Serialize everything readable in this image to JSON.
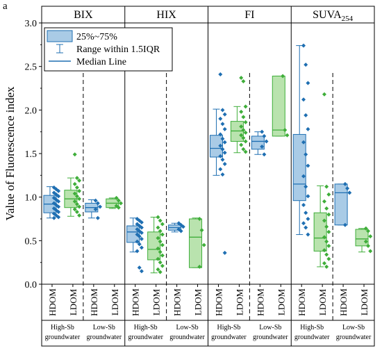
{
  "panel_label": "a",
  "chart_data": {
    "type": "box",
    "title": "",
    "ylabel": "Value of Fluorescence index",
    "ylim": [
      0,
      3.0
    ],
    "yticks": [
      0.0,
      0.5,
      1.0,
      1.5,
      2.0,
      2.5,
      3.0
    ],
    "ytick_labels": [
      "0.0",
      "0.5",
      "1.0",
      "1.5",
      "2.0",
      "2.5",
      "3.0"
    ],
    "grid": false,
    "legend": {
      "position": "top-left",
      "entries": [
        {
          "kind": "box",
          "label": "25%~75%"
        },
        {
          "kind": "whisker",
          "label": "Range within 1.5IQR"
        },
        {
          "kind": "median",
          "label": "Median Line"
        }
      ]
    },
    "groups": [
      {
        "label": "High-Sb",
        "label2": "groundwater"
      },
      {
        "label": "Low-Sb",
        "label2": "groundwater"
      }
    ],
    "series": [
      {
        "name": "HDOM",
        "color": "#1f6fb2",
        "fill": "#a9cbe6"
      },
      {
        "name": "LDOM",
        "color": "#3fae3a",
        "fill": "#b9e3ae"
      }
    ],
    "panels": [
      {
        "name_parts": [
          {
            "text": "BIX"
          }
        ],
        "boxes": [
          {
            "series": "HDOM",
            "group": "High-Sb",
            "q1": 0.82,
            "median": 0.92,
            "q3": 1.02,
            "whisker_low": 0.76,
            "whisker_high": 1.12,
            "points": [
              1.11,
              1.09,
              1.07,
              1.05,
              1.03,
              1.01,
              0.99,
              0.97,
              0.95,
              0.93,
              0.91,
              0.89,
              0.87,
              0.85,
              0.83,
              0.81,
              0.79,
              0.77,
              0.76
            ]
          },
          {
            "series": "LDOM",
            "group": "High-Sb",
            "q1": 0.88,
            "median": 0.98,
            "q3": 1.08,
            "whisker_low": 0.78,
            "whisker_high": 1.22,
            "points": [
              1.49,
              1.22,
              1.19,
              1.15,
              1.11,
              1.07,
              1.04,
              1.01,
              0.98,
              0.95,
              0.92,
              0.89,
              0.86,
              0.83,
              0.79
            ]
          },
          {
            "series": "HDOM",
            "group": "Low-Sb",
            "q1": 0.83,
            "median": 0.88,
            "q3": 0.93,
            "whisker_low": 0.76,
            "whisker_high": 0.97,
            "points": [
              0.96,
              0.93,
              0.89,
              0.86,
              0.76
            ]
          },
          {
            "series": "LDOM",
            "group": "Low-Sb",
            "q1": 0.88,
            "median": 0.93,
            "q3": 0.98,
            "whisker_low": 0.87,
            "whisker_high": 0.99,
            "points": [
              0.99,
              0.96,
              0.93,
              0.9,
              0.88
            ]
          }
        ]
      },
      {
        "name_parts": [
          {
            "text": "HIX"
          }
        ],
        "boxes": [
          {
            "series": "HDOM",
            "group": "High-Sb",
            "q1": 0.48,
            "median": 0.6,
            "q3": 0.67,
            "whisker_low": 0.37,
            "whisker_high": 0.76,
            "points": [
              0.75,
              0.73,
              0.71,
              0.69,
              0.67,
              0.65,
              0.63,
              0.61,
              0.59,
              0.57,
              0.55,
              0.52,
              0.49,
              0.46,
              0.42,
              0.38,
              0.19,
              0.15
            ]
          },
          {
            "series": "LDOM",
            "group": "High-Sb",
            "q1": 0.28,
            "median": 0.4,
            "q3": 0.6,
            "whisker_low": 0.13,
            "whisker_high": 0.77,
            "points": [
              0.77,
              0.73,
              0.69,
              0.65,
              0.61,
              0.57,
              0.53,
              0.49,
              0.45,
              0.41,
              0.37,
              0.33,
              0.29,
              0.25,
              0.21,
              0.17,
              0.14
            ]
          },
          {
            "series": "HDOM",
            "group": "Low-Sb",
            "q1": 0.62,
            "median": 0.65,
            "q3": 0.68,
            "whisker_low": 0.6,
            "whisker_high": 0.7,
            "points": [
              0.7,
              0.68,
              0.66,
              0.63,
              0.61
            ]
          },
          {
            "series": "LDOM",
            "group": "Low-Sb",
            "q1": 0.19,
            "median": 0.54,
            "q3": 0.75,
            "whisker_low": 0.19,
            "whisker_high": 0.76,
            "points": [
              0.75,
              0.62,
              0.45,
              0.2
            ]
          }
        ]
      },
      {
        "name_parts": [
          {
            "text": "FI"
          }
        ],
        "boxes": [
          {
            "series": "HDOM",
            "group": "High-Sb",
            "q1": 1.46,
            "median": 1.56,
            "q3": 1.71,
            "whisker_low": 1.25,
            "whisker_high": 2.01,
            "points": [
              2.41,
              2.0,
              1.95,
              1.9,
              1.84,
              1.78,
              1.72,
              1.67,
              1.63,
              1.59,
              1.55,
              1.51,
              1.47,
              1.43,
              1.38,
              1.32,
              1.26,
              0.36
            ]
          },
          {
            "series": "LDOM",
            "group": "High-Sb",
            "q1": 1.64,
            "median": 1.76,
            "q3": 1.87,
            "whisker_low": 1.51,
            "whisker_high": 2.04,
            "points": [
              2.37,
              2.33,
              2.04,
              1.98,
              1.92,
              1.86,
              1.81,
              1.77,
              1.74,
              1.71,
              1.68,
              1.64,
              1.6,
              1.55,
              1.52
            ]
          },
          {
            "series": "HDOM",
            "group": "Low-Sb",
            "q1": 1.55,
            "median": 1.64,
            "q3": 1.7,
            "whisker_low": 1.49,
            "whisker_high": 1.75,
            "points": [
              1.75,
              1.7,
              1.64,
              1.58,
              1.49
            ]
          },
          {
            "series": "LDOM",
            "group": "Low-Sb",
            "q1": 1.7,
            "median": 1.77,
            "q3": 2.39,
            "whisker_low": 1.7,
            "whisker_high": 2.39,
            "points": [
              2.39,
              1.77,
              1.71
            ]
          }
        ]
      },
      {
        "name_parts": [
          {
            "text": "SUVA"
          },
          {
            "text": "254",
            "sub": true
          }
        ],
        "boxes": [
          {
            "series": "HDOM",
            "group": "High-Sb",
            "q1": 0.96,
            "median": 1.15,
            "q3": 1.72,
            "whisker_low": 0.57,
            "whisker_high": 2.74,
            "points": [
              2.74,
              2.52,
              2.31,
              2.12,
              1.94,
              1.78,
              1.63,
              1.49,
              1.36,
              1.24,
              1.12,
              1.01,
              0.91,
              0.82,
              0.75,
              0.7,
              0.65,
              0.57
            ]
          },
          {
            "series": "LDOM",
            "group": "High-Sb",
            "q1": 0.38,
            "median": 0.53,
            "q3": 0.82,
            "whisker_low": 0.2,
            "whisker_high": 1.13,
            "points": [
              2.18,
              1.12,
              1.03,
              0.95,
              0.87,
              0.8,
              0.73,
              0.66,
              0.6,
              0.54,
              0.49,
              0.44,
              0.39,
              0.34,
              0.29,
              0.24,
              0.2
            ]
          },
          {
            "series": "HDOM",
            "group": "Low-Sb",
            "q1": 0.68,
            "median": 1.05,
            "q3": 1.15,
            "whisker_low": 0.68,
            "whisker_high": 1.15,
            "points": [
              1.15,
              1.1,
              1.05,
              0.68
            ]
          },
          {
            "series": "LDOM",
            "group": "Low-Sb",
            "q1": 0.44,
            "median": 0.52,
            "q3": 0.63,
            "whisker_low": 0.37,
            "whisker_high": 0.64,
            "points": [
              0.64,
              0.61,
              0.55,
              0.49,
              0.44,
              0.38
            ]
          }
        ]
      }
    ]
  }
}
